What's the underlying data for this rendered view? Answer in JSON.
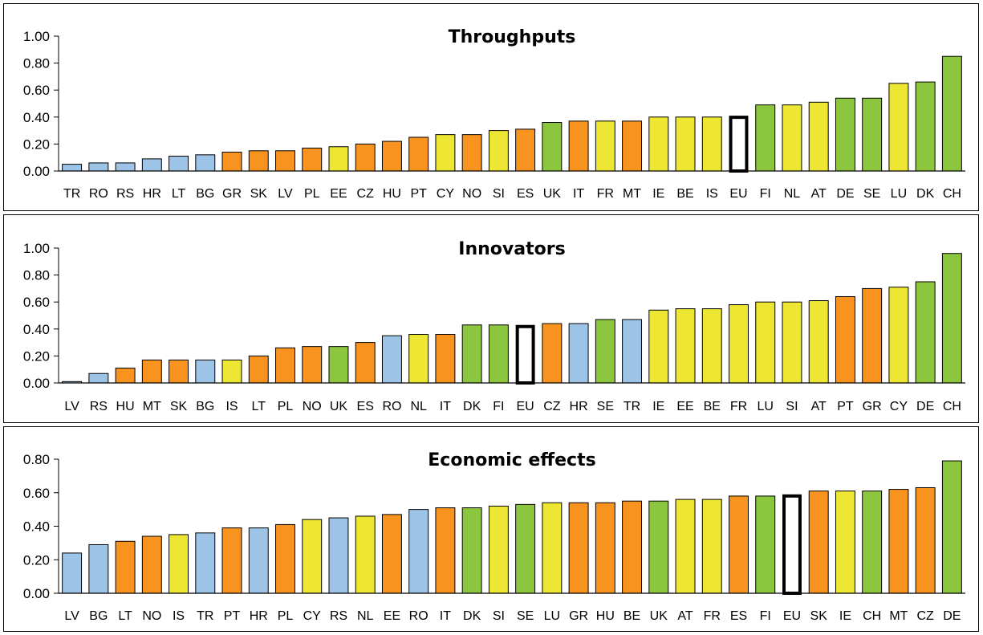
{
  "colors": {
    "blue": "#9DC3E6",
    "orange": "#F7931E",
    "yellow": "#EDE633",
    "green": "#8CC63F",
    "eu": "#FFFFFF"
  },
  "chart_data": [
    {
      "type": "bar",
      "title": "Throughputs",
      "ylim": [
        0,
        1.0
      ],
      "yticks": [
        "0.00",
        "0.20",
        "0.40",
        "0.60",
        "0.80",
        "1.00"
      ],
      "categories": [
        "TR",
        "RO",
        "RS",
        "HR",
        "LT",
        "BG",
        "GR",
        "SK",
        "LV",
        "PL",
        "EE",
        "CZ",
        "HU",
        "PT",
        "CY",
        "NO",
        "SI",
        "ES",
        "UK",
        "IT",
        "FR",
        "MT",
        "IE",
        "BE",
        "IS",
        "EU",
        "FI",
        "NL",
        "AT",
        "DE",
        "SE",
        "LU",
        "DK",
        "CH"
      ],
      "values": [
        0.05,
        0.06,
        0.06,
        0.09,
        0.11,
        0.12,
        0.14,
        0.15,
        0.15,
        0.17,
        0.18,
        0.2,
        0.22,
        0.25,
        0.27,
        0.27,
        0.3,
        0.31,
        0.36,
        0.37,
        0.37,
        0.37,
        0.4,
        0.4,
        0.4,
        0.41,
        0.49,
        0.49,
        0.51,
        0.54,
        0.54,
        0.65,
        0.66,
        0.85
      ],
      "colors": [
        "blue",
        "blue",
        "blue",
        "blue",
        "blue",
        "blue",
        "orange",
        "orange",
        "orange",
        "orange",
        "yellow",
        "orange",
        "orange",
        "orange",
        "yellow",
        "orange",
        "yellow",
        "orange",
        "green",
        "orange",
        "yellow",
        "orange",
        "yellow",
        "yellow",
        "yellow",
        "eu",
        "green",
        "yellow",
        "yellow",
        "green",
        "green",
        "yellow",
        "green",
        "green"
      ]
    },
    {
      "type": "bar",
      "title": "Innovators",
      "ylim": [
        0,
        1.0
      ],
      "yticks": [
        "0.00",
        "0.20",
        "0.40",
        "0.60",
        "0.80",
        "1.00"
      ],
      "categories": [
        "LV",
        "RS",
        "HU",
        "MT",
        "SK",
        "BG",
        "IS",
        "LT",
        "PL",
        "NO",
        "UK",
        "ES",
        "RO",
        "NL",
        "IT",
        "DK",
        "FI",
        "EU",
        "CZ",
        "HR",
        "SE",
        "TR",
        "IE",
        "EE",
        "BE",
        "FR",
        "LU",
        "SI",
        "AT",
        "PT",
        "GR",
        "CY",
        "DE",
        "CH"
      ],
      "values": [
        0.01,
        0.07,
        0.11,
        0.17,
        0.17,
        0.17,
        0.17,
        0.2,
        0.26,
        0.27,
        0.27,
        0.3,
        0.35,
        0.36,
        0.36,
        0.43,
        0.43,
        0.43,
        0.44,
        0.44,
        0.47,
        0.47,
        0.54,
        0.55,
        0.55,
        0.58,
        0.6,
        0.6,
        0.61,
        0.64,
        0.7,
        0.71,
        0.75,
        0.96
      ],
      "colors": [
        "blue",
        "blue",
        "orange",
        "orange",
        "orange",
        "blue",
        "yellow",
        "orange",
        "orange",
        "orange",
        "green",
        "orange",
        "blue",
        "yellow",
        "orange",
        "green",
        "green",
        "eu",
        "orange",
        "blue",
        "green",
        "blue",
        "yellow",
        "yellow",
        "yellow",
        "yellow",
        "yellow",
        "yellow",
        "yellow",
        "orange",
        "orange",
        "yellow",
        "green",
        "green"
      ]
    },
    {
      "type": "bar",
      "title": "Economic effects",
      "ylim": [
        0,
        0.8
      ],
      "yticks": [
        "0.00",
        "0.20",
        "0.40",
        "0.60",
        "0.80"
      ],
      "categories": [
        "LV",
        "BG",
        "LT",
        "NO",
        "IS",
        "TR",
        "PT",
        "HR",
        "PL",
        "CY",
        "RS",
        "NL",
        "EE",
        "RO",
        "IT",
        "DK",
        "SI",
        "SE",
        "LU",
        "GR",
        "HU",
        "BE",
        "UK",
        "AT",
        "FR",
        "ES",
        "FI",
        "EU",
        "SK",
        "IE",
        "CH",
        "MT",
        "CZ",
        "DE"
      ],
      "values": [
        0.24,
        0.29,
        0.31,
        0.34,
        0.35,
        0.36,
        0.39,
        0.39,
        0.41,
        0.44,
        0.45,
        0.46,
        0.47,
        0.5,
        0.51,
        0.51,
        0.52,
        0.53,
        0.54,
        0.54,
        0.54,
        0.55,
        0.55,
        0.56,
        0.56,
        0.58,
        0.58,
        0.59,
        0.61,
        0.61,
        0.61,
        0.62,
        0.63,
        0.79
      ],
      "colors": [
        "blue",
        "blue",
        "orange",
        "orange",
        "yellow",
        "blue",
        "orange",
        "blue",
        "orange",
        "yellow",
        "blue",
        "yellow",
        "orange",
        "blue",
        "orange",
        "green",
        "yellow",
        "green",
        "yellow",
        "orange",
        "orange",
        "orange",
        "green",
        "yellow",
        "yellow",
        "orange",
        "green",
        "eu",
        "orange",
        "yellow",
        "green",
        "orange",
        "orange",
        "green"
      ]
    }
  ]
}
